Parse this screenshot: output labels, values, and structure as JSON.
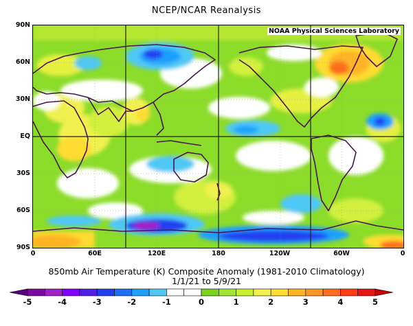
{
  "header": {
    "title": "NCEP/NCAR Reanalysis"
  },
  "credit": "NOAA Physical Sciences Laboratory",
  "map": {
    "lat_labels": [
      "90N",
      "60N",
      "30N",
      "EQ",
      "30S",
      "60S",
      "90S"
    ],
    "lon_labels": [
      "0",
      "60E",
      "120E",
      "180",
      "120W",
      "60W",
      "0"
    ],
    "grid_longitudes_emphasized": [
      "90E",
      "180",
      "90W"
    ],
    "grid_latitudes_emphasized": [
      "EQ"
    ]
  },
  "caption": {
    "line1": "850mb Air Temperature (K) Composite Anomaly (1981-2010 Climatology)",
    "line2": "1/1/21   to 5/9/21"
  },
  "colorbar": {
    "labels": [
      "-5",
      "-4",
      "-3",
      "-2",
      "-1",
      "0",
      "1",
      "2",
      "3",
      "4",
      "5"
    ],
    "colors": [
      "#7a0aa0",
      "#a020c8",
      "#8000ff",
      "#5020e8",
      "#2040f0",
      "#1e6ef5",
      "#1ea0ff",
      "#50c8f5",
      "#ffffff",
      "#ffffff",
      "#78d21e",
      "#a0e632",
      "#c8f032",
      "#f0f050",
      "#ffdc32",
      "#ffb428",
      "#ff9628",
      "#ff6e1e",
      "#ff3c14",
      "#e61414"
    ]
  }
}
